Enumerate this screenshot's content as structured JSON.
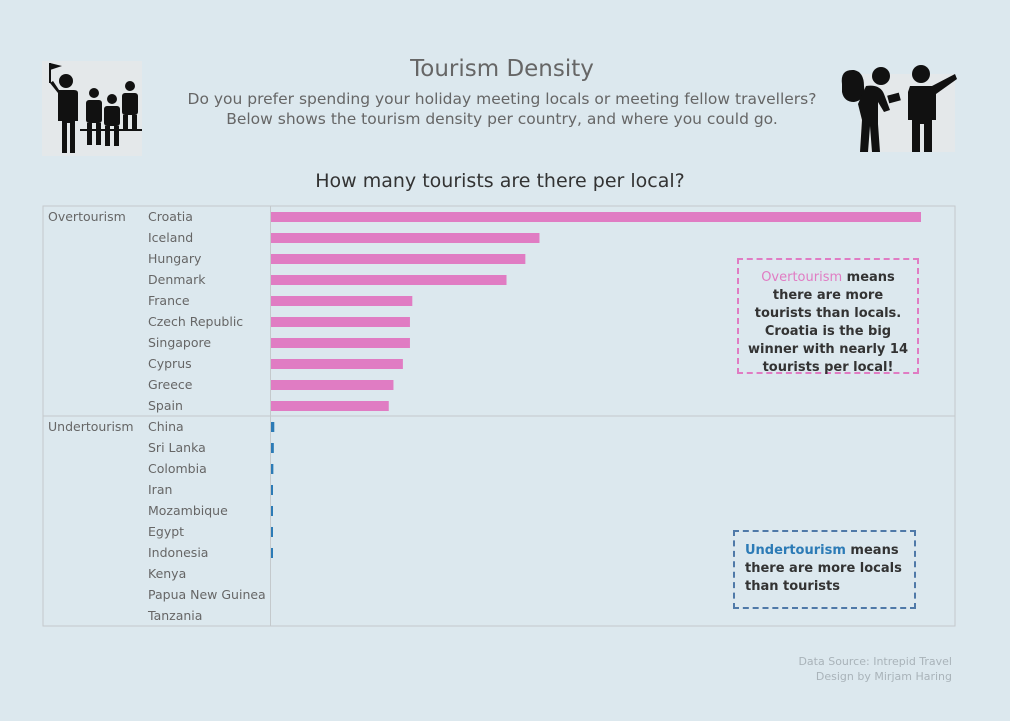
{
  "header": {
    "title": "Tourism Density",
    "subtitle": "Do you prefer spending your holiday meeting locals or meeting fellow travellers? Below shows the tourism density per country, and where you could go."
  },
  "icons": {
    "left": "tour-guide-group-icon",
    "right": "traveller-asking-directions-icon"
  },
  "chart_data": {
    "type": "bar",
    "orientation": "horizontal",
    "title": "How many tourists are there per local?",
    "groups": [
      {
        "name": "Overtourism",
        "color": "#e07cc3",
        "categories": [
          "Croatia",
          "Iceland",
          "Hungary",
          "Denmark",
          "France",
          "Czech Republic",
          "Singapore",
          "Cyprus",
          "Greece",
          "Spain"
        ],
        "values": [
          13.8,
          5.7,
          5.4,
          5.0,
          3.0,
          2.95,
          2.95,
          2.8,
          2.6,
          2.5
        ]
      },
      {
        "name": "Undertourism",
        "color": "#2c7bb6",
        "categories": [
          "China",
          "Sri Lanka",
          "Colombia",
          "Iran",
          "Mozambique",
          "Egypt",
          "Indonesia",
          "Kenya",
          "Papua New Guinea",
          "Tanzania"
        ],
        "values": [
          0.07,
          0.06,
          0.05,
          0.04,
          0.04,
          0.04,
          0.03,
          0.0,
          0.0,
          0.0
        ]
      }
    ],
    "xlim": [
      0,
      14
    ]
  },
  "callouts": {
    "over_keyword": "Overtourism",
    "over_text": " means there are more tourists than locals. Croatia is the big winner with nearly 14 tourists per local!",
    "under_keyword": "Undertourism",
    "under_text": " means there are more locals than tourists"
  },
  "footer": {
    "source": "Data Source: Intrepid Travel",
    "design": "Design by Mirjam Haring"
  }
}
